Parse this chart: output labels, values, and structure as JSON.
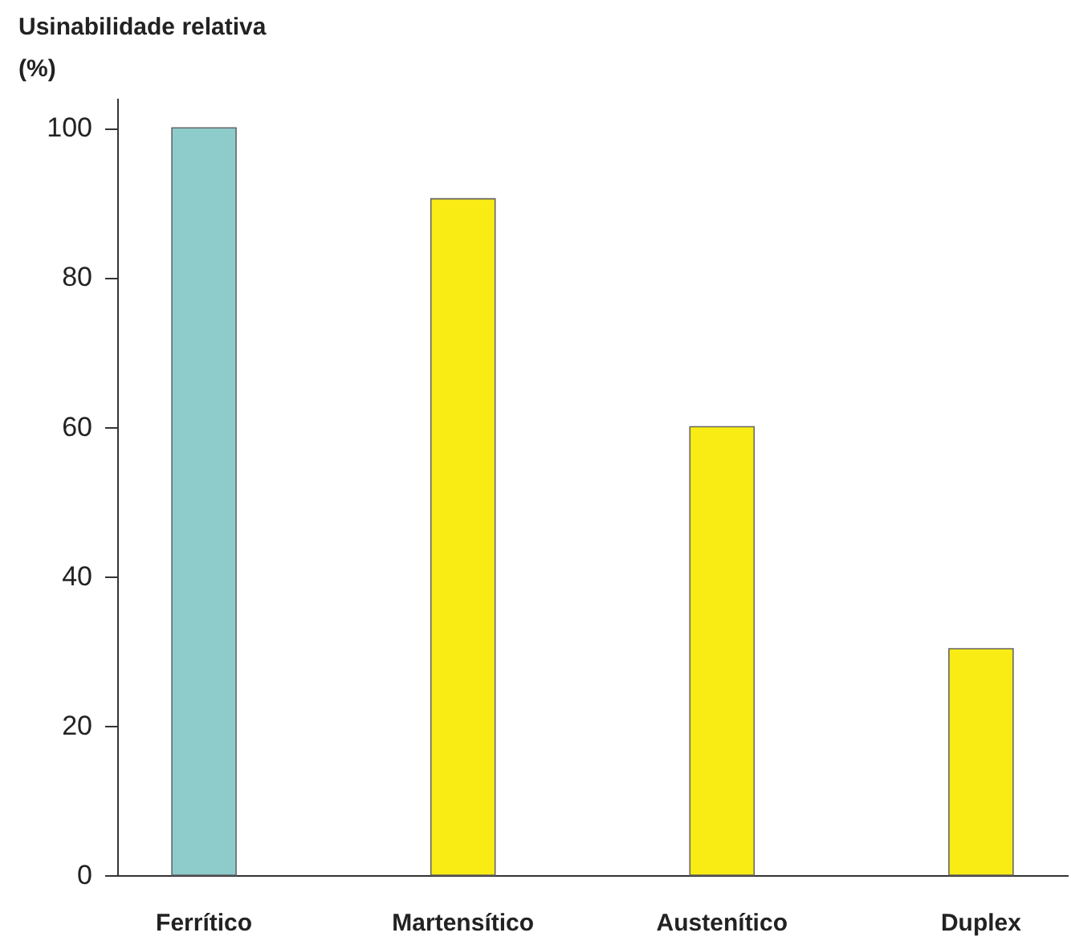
{
  "chart_data": {
    "type": "bar",
    "ylabel": "Usinabilidade relativa (%)",
    "categories": [
      "Ferrítico",
      "Martensítico",
      "Austenítico",
      "Duplex"
    ],
    "values": [
      100,
      90.5,
      60,
      30.3
    ],
    "colors": [
      "#8ecccc",
      "#f9ec14",
      "#f9ec14",
      "#f9ec14"
    ],
    "ylim": [
      0,
      104
    ],
    "yticks": [
      0,
      20,
      40,
      60,
      80,
      100
    ],
    "grid": false
  }
}
